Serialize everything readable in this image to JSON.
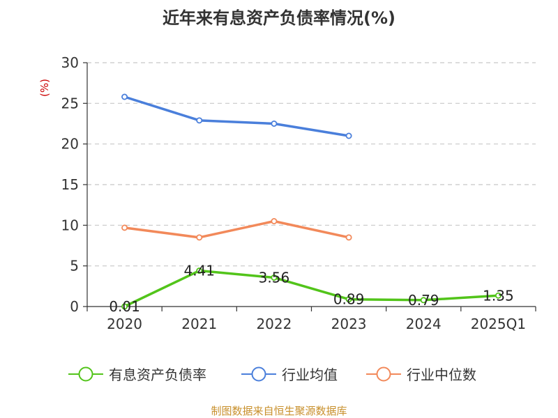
{
  "chart_data": {
    "type": "line",
    "title": "近年来有息资产负债率情况(%)",
    "y_unit": "(%)",
    "categories": [
      "2020",
      "2021",
      "2022",
      "2023",
      "2024",
      "2025Q1"
    ],
    "ylim": [
      0,
      30
    ],
    "yticks": [
      0,
      5,
      10,
      15,
      20,
      25,
      30
    ],
    "grid": true,
    "legend_position": "bottom",
    "series": [
      {
        "name": "有息资产负债率",
        "color": "#52c41a",
        "values": [
          0.01,
          4.41,
          3.56,
          0.89,
          0.79,
          1.35
        ],
        "labels": [
          "0.01",
          "4.41",
          "3.56",
          "0.89",
          "0.79",
          "1.35"
        ]
      },
      {
        "name": "行业均值",
        "color": "#4a7fdb",
        "values": [
          25.8,
          22.9,
          22.5,
          21.0,
          null,
          null
        ]
      },
      {
        "name": "行业中位数",
        "color": "#f2895a",
        "values": [
          9.7,
          8.5,
          10.5,
          8.5,
          null,
          null
        ]
      }
    ],
    "source": "制图数据来自恒生聚源数据库"
  }
}
